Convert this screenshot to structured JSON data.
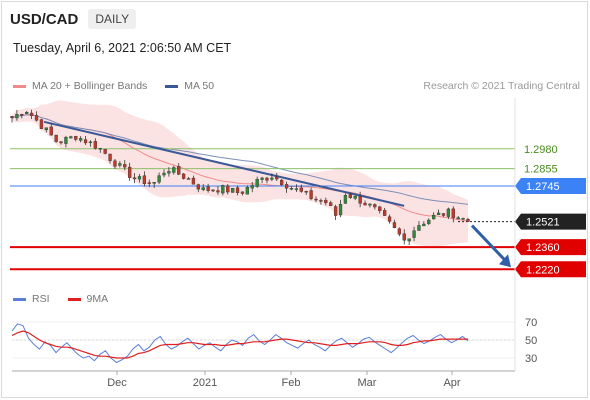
{
  "header": {
    "symbol": "USD/CAD",
    "timeframe": "DAILY"
  },
  "timestamp": "Tuesday, April 6, 2021 2:06:50 AM CET",
  "legend": {
    "ma20_label": "MA 20 + Bollinger Bands",
    "ma50_label": "MA 50",
    "ma20_color": "#f08a8a",
    "ma50_color": "#3b5998"
  },
  "credit": "Research © 2021 Trading Central",
  "rsi_legend": {
    "rsi_label": "RSI",
    "ma_label": "9MA",
    "rsi_color": "#5b7fd6",
    "ma_color": "#e02020"
  },
  "colors": {
    "up": "#2e8b3a",
    "down": "#c0392b",
    "bands": "#fbe3e3",
    "resistance_green": "#8ec06c",
    "pivot_blue": "#3b82f6",
    "support_red": "#e00000",
    "last_price": "#222222",
    "arrow": "#2f5fa8"
  },
  "chart_data": [
    {
      "type": "candlestick",
      "title": "USD/CAD daily",
      "x_ticks": [
        "Dec",
        "2021",
        "Feb",
        "Mar",
        "Apr"
      ],
      "ylim": [
        1.214,
        1.33
      ],
      "levels": [
        {
          "value": 1.298,
          "label": "1.2980",
          "kind": "resistance",
          "color": "#8ec06c"
        },
        {
          "value": 1.2855,
          "label": "1.2855",
          "kind": "resistance",
          "color": "#8ec06c"
        },
        {
          "value": 1.2745,
          "label": "1.2745",
          "kind": "pivot",
          "color": "#3b82f6"
        },
        {
          "value": 1.2521,
          "label": "1.2521",
          "kind": "last",
          "color": "#222222"
        },
        {
          "value": 1.236,
          "label": "1.2360",
          "kind": "support",
          "color": "#e00000"
        },
        {
          "value": 1.222,
          "label": "1.2220",
          "kind": "support",
          "color": "#e00000"
        }
      ],
      "trendline": {
        "from": {
          "x": 0.07,
          "y": 1.315
        },
        "to": {
          "x": 0.86,
          "y": 1.262
        }
      },
      "close_anchors": [
        {
          "t": 0.0,
          "v": 1.3175
        },
        {
          "t": 0.03,
          "v": 1.323
        },
        {
          "t": 0.06,
          "v": 1.314
        },
        {
          "t": 0.1,
          "v": 1.302
        },
        {
          "t": 0.14,
          "v": 1.306
        },
        {
          "t": 0.19,
          "v": 1.299
        },
        {
          "t": 0.23,
          "v": 1.288
        },
        {
          "t": 0.27,
          "v": 1.279
        },
        {
          "t": 0.31,
          "v": 1.276
        },
        {
          "t": 0.34,
          "v": 1.286
        },
        {
          "t": 0.38,
          "v": 1.28
        },
        {
          "t": 0.42,
          "v": 1.272
        },
        {
          "t": 0.46,
          "v": 1.273
        },
        {
          "t": 0.5,
          "v": 1.27
        },
        {
          "t": 0.54,
          "v": 1.278
        },
        {
          "t": 0.57,
          "v": 1.281
        },
        {
          "t": 0.61,
          "v": 1.274
        },
        {
          "t": 0.65,
          "v": 1.268
        },
        {
          "t": 0.69,
          "v": 1.264
        },
        {
          "t": 0.71,
          "v": 1.256
        },
        {
          "t": 0.73,
          "v": 1.27
        },
        {
          "t": 0.76,
          "v": 1.266
        },
        {
          "t": 0.79,
          "v": 1.261
        },
        {
          "t": 0.82,
          "v": 1.253
        },
        {
          "t": 0.86,
          "v": 1.24
        },
        {
          "t": 0.89,
          "v": 1.25
        },
        {
          "t": 0.93,
          "v": 1.256
        },
        {
          "t": 0.96,
          "v": 1.258
        },
        {
          "t": 1.0,
          "v": 1.2521
        }
      ],
      "candle_count": 94,
      "forecast_arrow": {
        "from_value": 1.2521,
        "to_value": 1.222
      }
    },
    {
      "type": "line",
      "title": "RSI",
      "ylim": [
        20,
        80
      ],
      "y_ticks": [
        70,
        50,
        30
      ],
      "series": [
        {
          "name": "RSI",
          "color": "#5b7fd6",
          "values": [
            60,
            68,
            66,
            52,
            45,
            40,
            48,
            44,
            36,
            42,
            47,
            40,
            34,
            30,
            32,
            27,
            34,
            38,
            30,
            25,
            28,
            32,
            40,
            45,
            38,
            42,
            50,
            54,
            45,
            40,
            43,
            48,
            52,
            46,
            40,
            44,
            47,
            42,
            38,
            45,
            50,
            48,
            44,
            52,
            56,
            49,
            45,
            50,
            56,
            52,
            47,
            44,
            41,
            46,
            50,
            45,
            42,
            38,
            44,
            49,
            52,
            47,
            42,
            46,
            51,
            53,
            48,
            44,
            40,
            36,
            41,
            47,
            52,
            55,
            50,
            46,
            49,
            53,
            56,
            51,
            47,
            50,
            54,
            49
          ]
        },
        {
          "name": "9MA",
          "color": "#e02020",
          "values": [
            55,
            58,
            60,
            58,
            54,
            50,
            47,
            45,
            43,
            42,
            42,
            41,
            39,
            37,
            35,
            33,
            32,
            32,
            31,
            30,
            30,
            30,
            32,
            35,
            36,
            38,
            41,
            44,
            45,
            45,
            45,
            46,
            47,
            47,
            46,
            45,
            45,
            45,
            44,
            44,
            45,
            46,
            46,
            47,
            48,
            48,
            48,
            49,
            50,
            51,
            51,
            50,
            49,
            48,
            47,
            47,
            46,
            45,
            44,
            44,
            45,
            46,
            46,
            46,
            47,
            48,
            48,
            48,
            47,
            45,
            44,
            44,
            45,
            47,
            48,
            49,
            49,
            50,
            51,
            51,
            51,
            51,
            51,
            51
          ]
        }
      ]
    }
  ]
}
